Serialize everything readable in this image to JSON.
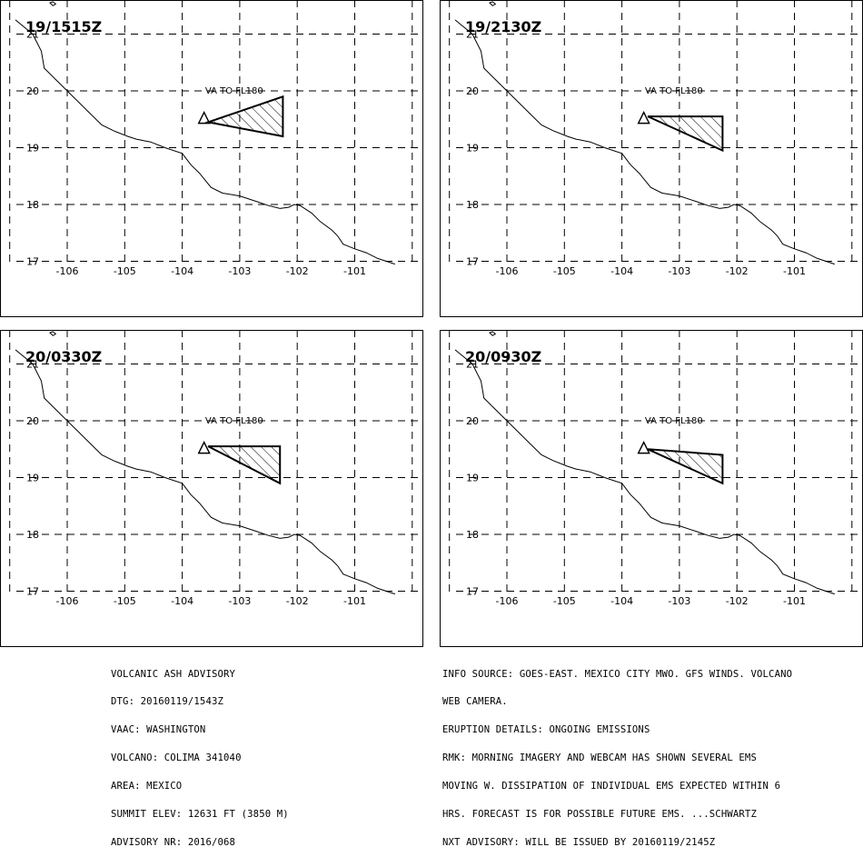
{
  "panels": [
    {
      "time_label": "19/1515Z",
      "va_label": "VA TO FL180",
      "polygon": [
        [
          -103.55,
          19.45
        ],
        [
          -102.25,
          19.9
        ],
        [
          -102.25,
          19.2
        ]
      ]
    },
    {
      "time_label": "19/2130Z",
      "va_label": "VA TO FL180",
      "polygon": [
        [
          -103.55,
          19.55
        ],
        [
          -102.25,
          19.55
        ],
        [
          -102.25,
          18.95
        ]
      ]
    },
    {
      "time_label": "20/0330Z",
      "va_label": "VA TO FL180",
      "polygon": [
        [
          -103.55,
          19.55
        ],
        [
          -102.3,
          19.55
        ],
        [
          -102.3,
          18.9
        ]
      ]
    },
    {
      "time_label": "20/0930Z",
      "va_label": "VA TO FL180",
      "polygon": [
        [
          -103.55,
          19.5
        ],
        [
          -102.25,
          19.4
        ],
        [
          -102.25,
          18.9
        ]
      ]
    }
  ],
  "volcano": {
    "lon": -103.62,
    "lat": 19.51
  },
  "map_extent": {
    "lon_min": -106.9,
    "lon_max": -100.3,
    "lat_min": 16.85,
    "lat_max": 21.2
  },
  "lon_ticks": [
    "-106",
    "-105",
    "-104",
    "-103",
    "-102",
    "-101"
  ],
  "lat_ticks": [
    "17",
    "18",
    "19",
    "20",
    "21"
  ],
  "advisory_left": [
    "VOLCANIC ASH ADVISORY",
    "DTG: 20160119/1543Z",
    "VAAC: WASHINGTON",
    "VOLCANO: COLIMA 341040",
    "AREA: MEXICO",
    "SUMMIT ELEV: 12631 FT (3850 M)",
    "ADVISORY NR: 2016/068"
  ],
  "advisory_right": [
    "INFO SOURCE: GOES-EAST. MEXICO CITY MWO. GFS WINDS. VOLCANO",
    "WEB CAMERA.",
    "ERUPTION DETAILS: ONGOING EMISSIONS",
    "RMK: MORNING IMAGERY AND WEBCAM HAS SHOWN SEVERAL EMS",
    "MOVING W. DISSIPATION OF INDIVIDUAL EMS EXPECTED WITHIN 6",
    "HRS. FORECAST IS FOR POSSIBLE FUTURE EMS. ...SCHWARTZ",
    "NXT ADVISORY: WILL BE ISSUED BY 20160119/2145Z"
  ],
  "coastline": [
    [
      -106.9,
      21.25
    ],
    [
      -106.6,
      21.0
    ],
    [
      -106.45,
      20.7
    ],
    [
      -106.4,
      20.4
    ],
    [
      -106.2,
      20.2
    ],
    [
      -106.0,
      20.0
    ],
    [
      -105.8,
      19.8
    ],
    [
      -105.6,
      19.6
    ],
    [
      -105.4,
      19.4
    ],
    [
      -105.2,
      19.3
    ],
    [
      -104.95,
      19.2
    ],
    [
      -104.8,
      19.15
    ],
    [
      -104.55,
      19.1
    ],
    [
      -104.3,
      19.0
    ],
    [
      -104.0,
      18.9
    ],
    [
      -103.85,
      18.7
    ],
    [
      -103.7,
      18.55
    ],
    [
      -103.5,
      18.3
    ],
    [
      -103.3,
      18.2
    ],
    [
      -103.0,
      18.15
    ],
    [
      -102.7,
      18.05
    ],
    [
      -102.5,
      17.98
    ],
    [
      -102.3,
      17.93
    ],
    [
      -102.15,
      17.95
    ],
    [
      -102.05,
      18.0
    ],
    [
      -101.95,
      17.98
    ],
    [
      -101.75,
      17.85
    ],
    [
      -101.6,
      17.7
    ],
    [
      -101.4,
      17.55
    ],
    [
      -101.3,
      17.45
    ],
    [
      -101.2,
      17.3
    ],
    [
      -101.0,
      17.22
    ],
    [
      -100.8,
      17.15
    ],
    [
      -100.6,
      17.05
    ],
    [
      -100.3,
      16.95
    ]
  ],
  "islands": [
    [
      [
        -106.5,
        21.65
      ],
      [
        -106.45,
        21.6
      ],
      [
        -106.4,
        21.62
      ],
      [
        -106.45,
        21.67
      ]
    ],
    [
      [
        -106.3,
        21.55
      ],
      [
        -106.25,
        21.5
      ],
      [
        -106.2,
        21.53
      ],
      [
        -106.25,
        21.57
      ]
    ]
  ]
}
